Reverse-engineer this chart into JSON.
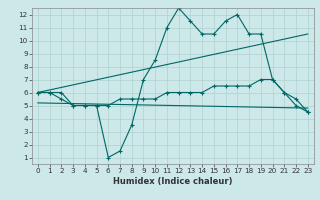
{
  "title": "",
  "xlabel": "Humidex (Indice chaleur)",
  "bg_color": "#cce8e8",
  "grid_color": "#b0d0d0",
  "line_color": "#006666",
  "xlim": [
    -0.5,
    23.5
  ],
  "ylim": [
    0.5,
    12.5
  ],
  "xticks": [
    0,
    1,
    2,
    3,
    4,
    5,
    6,
    7,
    8,
    9,
    10,
    11,
    12,
    13,
    14,
    15,
    16,
    17,
    18,
    19,
    20,
    21,
    22,
    23
  ],
  "yticks": [
    1,
    2,
    3,
    4,
    5,
    6,
    7,
    8,
    9,
    10,
    11,
    12
  ],
  "line1_x": [
    0,
    1,
    2,
    3,
    4,
    5,
    6,
    7,
    8,
    9,
    10,
    11,
    12,
    13,
    14,
    15,
    16,
    17,
    18,
    19,
    20,
    21,
    22,
    23
  ],
  "line1_y": [
    6.0,
    6.0,
    6.0,
    5.0,
    5.0,
    5.0,
    1.0,
    1.5,
    3.5,
    7.0,
    8.5,
    11.0,
    12.5,
    11.5,
    10.5,
    10.5,
    11.5,
    12.0,
    10.5,
    10.5,
    7.0,
    6.0,
    5.0,
    4.5
  ],
  "line2_x": [
    0,
    23
  ],
  "line2_y": [
    6.0,
    10.5
  ],
  "line3_x": [
    0,
    23
  ],
  "line3_y": [
    5.2,
    4.8
  ],
  "line4_x": [
    0,
    1,
    2,
    3,
    4,
    5,
    6,
    7,
    8,
    9,
    10,
    11,
    12,
    13,
    14,
    15,
    16,
    17,
    18,
    19,
    20,
    21,
    22,
    23
  ],
  "line4_y": [
    6.0,
    6.0,
    5.5,
    5.0,
    5.0,
    5.0,
    5.0,
    5.5,
    5.5,
    5.5,
    5.5,
    6.0,
    6.0,
    6.0,
    6.0,
    6.5,
    6.5,
    6.5,
    6.5,
    7.0,
    7.0,
    6.0,
    5.5,
    4.5
  ],
  "xlabel_fontsize": 6.0,
  "tick_fontsize": 5.2
}
